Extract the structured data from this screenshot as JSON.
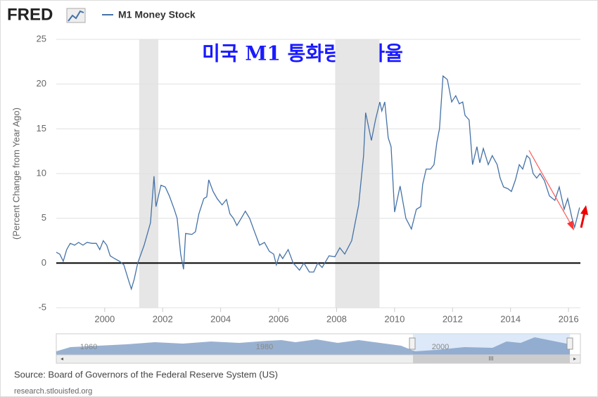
{
  "logo": "FRED",
  "chart_data": {
    "type": "line",
    "title": "미국 M1 통화량 증가율",
    "y_label": "(Percent Change from Year Ago)",
    "series": [
      {
        "name": "M1 Money Stock",
        "color": "#4572a7",
        "x": [
          1998.33,
          1998.45,
          1998.57,
          1998.69,
          1998.81,
          1998.96,
          1999.1,
          1999.25,
          1999.39,
          1999.56,
          1999.71,
          1999.83,
          1999.95,
          2000.07,
          2000.19,
          2000.34,
          2000.51,
          2000.66,
          2000.83,
          2000.92,
          2001.02,
          2001.14,
          2001.36,
          2001.58,
          2001.7,
          2001.77,
          2001.94,
          2002.09,
          2002.23,
          2002.4,
          2002.5,
          2002.62,
          2002.72,
          2002.79,
          2003.01,
          2003.13,
          2003.25,
          2003.42,
          2003.52,
          2003.59,
          2003.74,
          2003.88,
          2004.05,
          2004.2,
          2004.32,
          2004.44,
          2004.56,
          2004.71,
          2004.85,
          2005.0,
          2005.17,
          2005.34,
          2005.51,
          2005.68,
          2005.83,
          2005.92,
          2006.04,
          2006.14,
          2006.33,
          2006.5,
          2006.72,
          2006.87,
          2007.06,
          2007.21,
          2007.35,
          2007.5,
          2007.74,
          2007.94,
          2008.11,
          2008.28,
          2008.52,
          2008.76,
          2008.93,
          2009.0,
          2009.2,
          2009.34,
          2009.49,
          2009.56,
          2009.66,
          2009.78,
          2009.88,
          2010.0,
          2010.19,
          2010.39,
          2010.58,
          2010.75,
          2010.9,
          2010.97,
          2011.09,
          2011.24,
          2011.36,
          2011.46,
          2011.55,
          2011.67,
          2011.82,
          2011.97,
          2012.11,
          2012.23,
          2012.35,
          2012.43,
          2012.57,
          2012.69,
          2012.84,
          2012.94,
          2013.06,
          2013.23,
          2013.37,
          2013.54,
          2013.64,
          2013.76,
          2013.91,
          2014.03,
          2014.17,
          2014.3,
          2014.42,
          2014.56,
          2014.66,
          2014.78,
          2014.9,
          2015.02,
          2015.17,
          2015.34,
          2015.53,
          2015.68,
          2015.85,
          2015.97,
          2016.12,
          2016.21,
          2016.38
        ],
        "values": [
          1.2,
          1.0,
          0.2,
          1.5,
          2.2,
          2.0,
          2.3,
          2.0,
          2.3,
          2.2,
          2.2,
          1.5,
          2.5,
          2.0,
          0.8,
          0.5,
          0.2,
          -0.2,
          -2.0,
          -2.9,
          -1.8,
          0,
          2.0,
          4.5,
          9.7,
          6.3,
          8.7,
          8.5,
          7.5,
          6.0,
          5.0,
          1.0,
          -0.7,
          3.3,
          3.2,
          3.5,
          5.5,
          7.2,
          7.4,
          9.3,
          8.0,
          7.2,
          6.5,
          7.1,
          5.5,
          5.0,
          4.2,
          5.0,
          5.8,
          5.0,
          3.5,
          2.0,
          2.3,
          1.3,
          1.0,
          -0.2,
          1.0,
          0.5,
          1.5,
          0,
          -0.8,
          0,
          -1.0,
          -1.0,
          0,
          -0.5,
          0.8,
          0.7,
          1.7,
          1.0,
          2.5,
          6.5,
          12.0,
          16.8,
          13.7,
          16.0,
          18.0,
          17.0,
          18.0,
          14.0,
          13.0,
          5.7,
          8.6,
          5.0,
          3.8,
          6.0,
          6.3,
          8.8,
          10.5,
          10.5,
          11.0,
          13.5,
          15.0,
          20.9,
          20.5,
          18.0,
          18.7,
          17.8,
          18.0,
          16.5,
          16.0,
          11.0,
          13.0,
          11.2,
          12.8,
          11.0,
          12.0,
          11.0,
          9.5,
          8.5,
          8.3,
          8.0,
          9.3,
          11.0,
          10.5,
          12.0,
          11.7,
          10.0,
          9.5,
          10.0,
          9.2,
          7.5,
          7.0,
          8.5,
          6.0,
          7.2,
          5.0,
          4.0,
          6.2
        ]
      }
    ],
    "recessions": [
      [
        2001.19,
        2001.85
      ],
      [
        2007.95,
        2009.48
      ]
    ],
    "xlim": [
      1998.33,
      2016.41
    ],
    "xticks": [
      2000,
      2002,
      2004,
      2006,
      2008,
      2010,
      2012,
      2014,
      2016
    ],
    "ylim": [
      -5,
      25
    ],
    "yticks": [
      -5,
      0,
      5,
      10,
      15,
      20,
      25
    ],
    "grid": true,
    "navigator_labels": [
      "1960",
      "1980",
      "2000"
    ]
  },
  "source": "Source: Board of Governors of the Federal Reserve System (US)",
  "url": "research.stlouisfed.org"
}
